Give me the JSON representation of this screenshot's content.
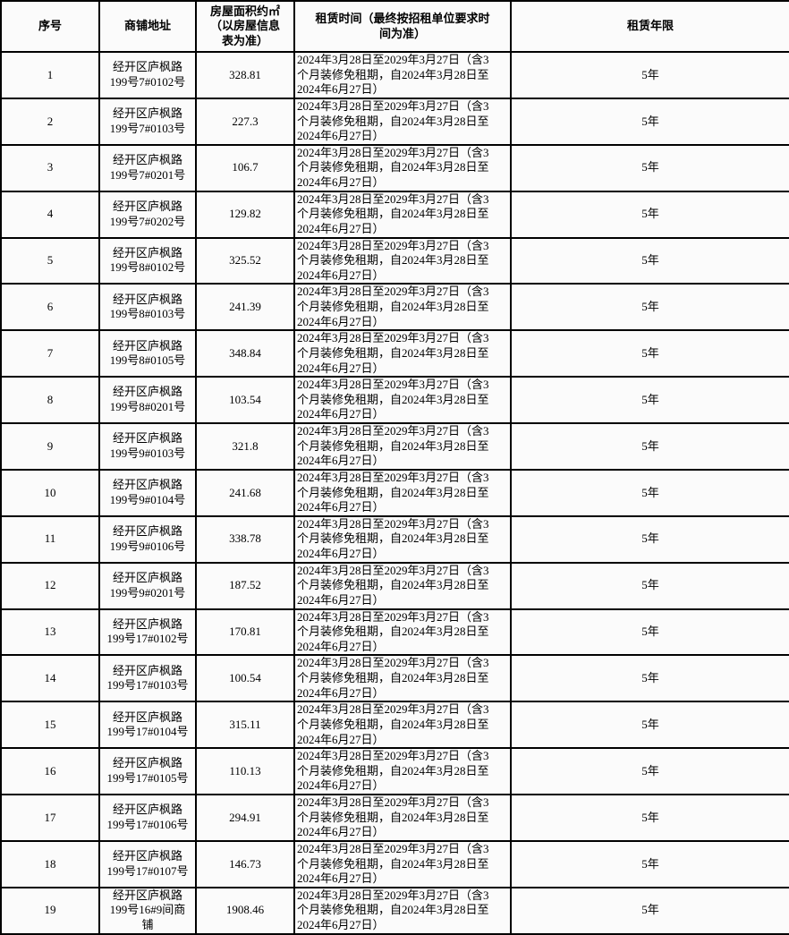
{
  "table": {
    "headers": {
      "no": "序号",
      "address": "商铺地址",
      "area_lines": [
        "房屋面积约㎡",
        "（以房屋信息",
        "表为准）"
      ],
      "area_full": "房屋面积约㎡（以房屋信息表为准）",
      "lease_time_lines": [
        "租赁时间（最终按招租单位要求时",
        "间为准）"
      ],
      "lease_time_full": "租赁时间（最终按招租单位要求时间为准）",
      "term": "租赁年限"
    },
    "lease_time_lines": [
      "2024年3月28日至2029年3月27日（含3",
      "个月装修免租期，自2024年3月28日至",
      "2024年6月27日）"
    ],
    "lease_time_full": "2024年3月28日至2029年3月27日（含3个月装修免租期，自2024年3月28日至2024年6月27日）",
    "rows": [
      {
        "no": "1",
        "address_lines": [
          "经开区庐枫路",
          "199号7#0102号"
        ],
        "address_full": "经开区庐枫路199号7#0102号",
        "area": "328.81",
        "term": "5年"
      },
      {
        "no": "2",
        "address_lines": [
          "经开区庐枫路",
          "199号7#0103号"
        ],
        "address_full": "经开区庐枫路199号7#0103号",
        "area": "227.3",
        "term": "5年"
      },
      {
        "no": "3",
        "address_lines": [
          "经开区庐枫路",
          "199号7#0201号"
        ],
        "address_full": "经开区庐枫路199号7#0201号",
        "area": "106.7",
        "term": "5年"
      },
      {
        "no": "4",
        "address_lines": [
          "经开区庐枫路",
          "199号7#0202号"
        ],
        "address_full": "经开区庐枫路199号7#0202号",
        "area": "129.82",
        "term": "5年"
      },
      {
        "no": "5",
        "address_lines": [
          "经开区庐枫路",
          "199号8#0102号"
        ],
        "address_full": "经开区庐枫路199号8#0102号",
        "area": "325.52",
        "term": "5年"
      },
      {
        "no": "6",
        "address_lines": [
          "经开区庐枫路",
          "199号8#0103号"
        ],
        "address_full": "经开区庐枫路199号8#0103号",
        "area": "241.39",
        "term": "5年"
      },
      {
        "no": "7",
        "address_lines": [
          "经开区庐枫路",
          "199号8#0105号"
        ],
        "address_full": "经开区庐枫路199号8#0105号",
        "area": "348.84",
        "term": "5年"
      },
      {
        "no": "8",
        "address_lines": [
          "经开区庐枫路",
          "199号8#0201号"
        ],
        "address_full": "经开区庐枫路199号8#0201号",
        "area": "103.54",
        "term": "5年"
      },
      {
        "no": "9",
        "address_lines": [
          "经开区庐枫路",
          "199号9#0103号"
        ],
        "address_full": "经开区庐枫路199号9#0103号",
        "area": "321.8",
        "term": "5年"
      },
      {
        "no": "10",
        "address_lines": [
          "经开区庐枫路",
          "199号9#0104号"
        ],
        "address_full": "经开区庐枫路199号9#0104号",
        "area": "241.68",
        "term": "5年"
      },
      {
        "no": "11",
        "address_lines": [
          "经开区庐枫路",
          "199号9#0106号"
        ],
        "address_full": "经开区庐枫路199号9#0106号",
        "area": "338.78",
        "term": "5年"
      },
      {
        "no": "12",
        "address_lines": [
          "经开区庐枫路",
          "199号9#0201号"
        ],
        "address_full": "经开区庐枫路199号9#0201号",
        "area": "187.52",
        "term": "5年"
      },
      {
        "no": "13",
        "address_lines": [
          "经开区庐枫路",
          "199号17#0102号"
        ],
        "address_full": "经开区庐枫路199号17#0102号",
        "area": "170.81",
        "term": "5年"
      },
      {
        "no": "14",
        "address_lines": [
          "经开区庐枫路",
          "199号17#0103号"
        ],
        "address_full": "经开区庐枫路199号17#0103号",
        "area": "100.54",
        "term": "5年"
      },
      {
        "no": "15",
        "address_lines": [
          "经开区庐枫路",
          "199号17#0104号"
        ],
        "address_full": "经开区庐枫路199号17#0104号",
        "area": "315.11",
        "term": "5年"
      },
      {
        "no": "16",
        "address_lines": [
          "经开区庐枫路",
          "199号17#0105号"
        ],
        "address_full": "经开区庐枫路199号17#0105号",
        "area": "110.13",
        "term": "5年"
      },
      {
        "no": "17",
        "address_lines": [
          "经开区庐枫路",
          "199号17#0106号"
        ],
        "address_full": "经开区庐枫路199号17#0106号",
        "area": "294.91",
        "term": "5年"
      },
      {
        "no": "18",
        "address_lines": [
          "经开区庐枫路",
          "199号17#0107号"
        ],
        "address_full": "经开区庐枫路199号17#0107号",
        "area": "146.73",
        "term": "5年"
      },
      {
        "no": "19",
        "address_lines": [
          "经开区庐枫路",
          "199号16#9间商",
          "铺"
        ],
        "address_full": "经开区庐枫路199号16#9间商铺",
        "area": "1908.46",
        "term": "5年"
      }
    ],
    "colors": {
      "border": "#000000",
      "background": "#fbfbfb",
      "text": "#000000"
    }
  }
}
